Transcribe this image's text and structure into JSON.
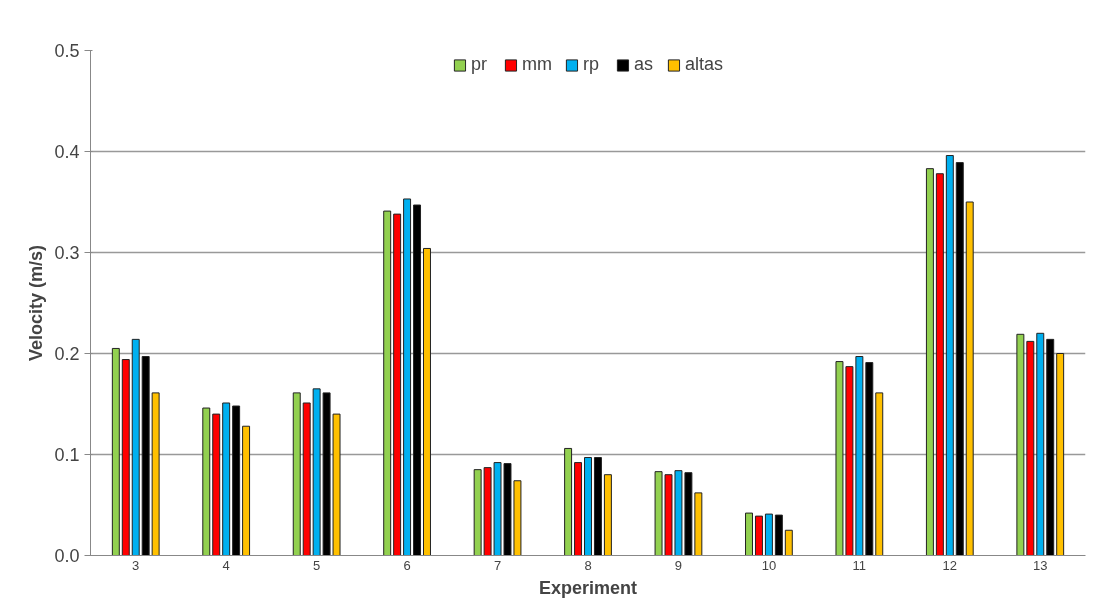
{
  "chart_data": {
    "type": "bar",
    "xlabel": "Experiment",
    "ylabel": "Velocity (m/s)",
    "categories": [
      "3",
      "4",
      "5",
      "6",
      "7",
      "8",
      "9",
      "10",
      "11",
      "12",
      "13"
    ],
    "series": [
      {
        "name": "pr",
        "color": "#92d050",
        "values": [
          0.205,
          0.146,
          0.161,
          0.341,
          0.085,
          0.106,
          0.083,
          0.042,
          0.192,
          0.383,
          0.219
        ]
      },
      {
        "name": "mm",
        "color": "#ff0000",
        "values": [
          0.194,
          0.14,
          0.151,
          0.338,
          0.087,
          0.092,
          0.08,
          0.039,
          0.187,
          0.378,
          0.212
        ]
      },
      {
        "name": "rp",
        "color": "#00b0f0",
        "values": [
          0.214,
          0.151,
          0.165,
          0.353,
          0.092,
          0.097,
          0.084,
          0.041,
          0.197,
          0.396,
          0.22
        ]
      },
      {
        "name": "as",
        "color": "#000000",
        "values": [
          0.197,
          0.148,
          0.161,
          0.347,
          0.091,
          0.097,
          0.082,
          0.04,
          0.191,
          0.389,
          0.214
        ]
      },
      {
        "name": "altas",
        "color": "#ffc000",
        "values": [
          0.161,
          0.128,
          0.14,
          0.304,
          0.074,
          0.08,
          0.062,
          0.025,
          0.161,
          0.35,
          0.2
        ]
      }
    ],
    "ylim": [
      0,
      0.5
    ],
    "yticks": [
      {
        "value": 0,
        "label": "0.0"
      },
      {
        "value": 0.1,
        "label": "0.1"
      },
      {
        "value": 0.2,
        "label": "0.2"
      },
      {
        "value": 0.3,
        "label": "0.3"
      },
      {
        "value": 0.4,
        "label": "0.4"
      },
      {
        "value": 0.5,
        "label": "0.5"
      }
    ],
    "grid": "y",
    "legend": "top"
  }
}
